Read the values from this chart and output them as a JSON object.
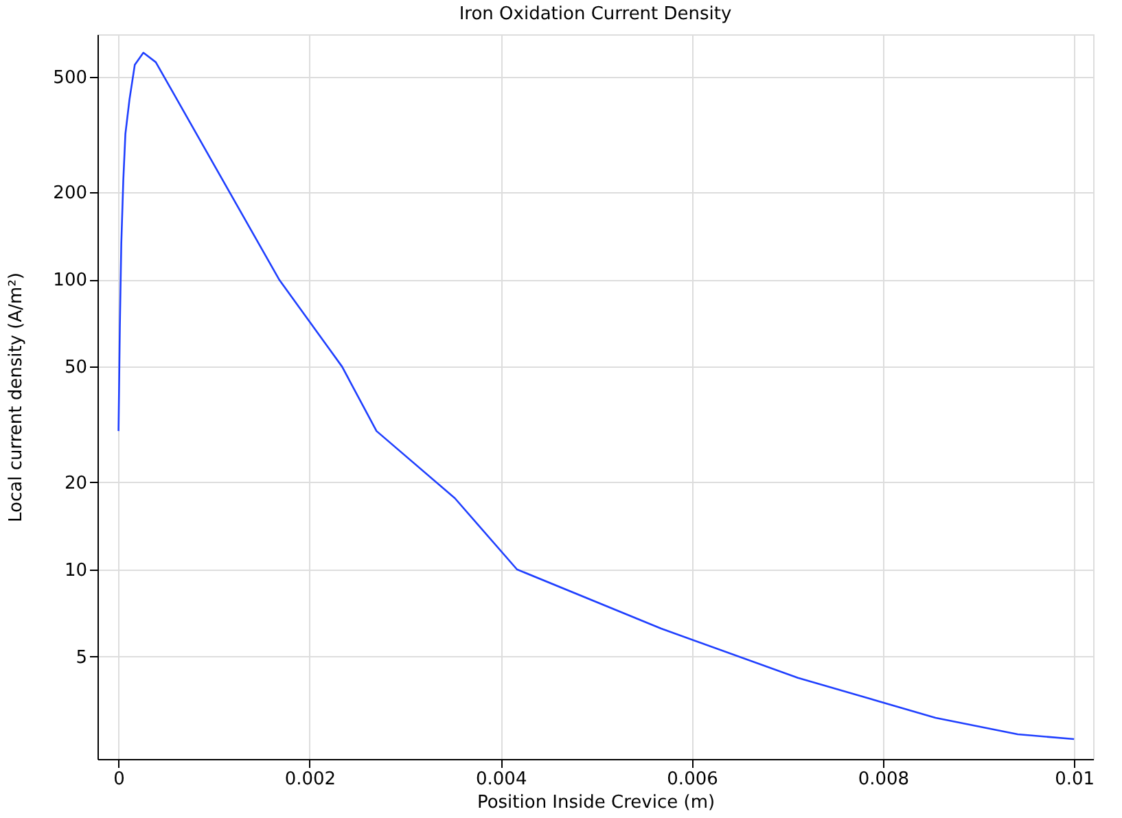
{
  "chart_data": {
    "type": "line",
    "title": "Iron Oxidation Current Density",
    "xlabel": "Position Inside Crevice (m)",
    "ylabel": "Local current density (A/m²)",
    "x": [
      0,
      1.4e-05,
      2.9e-05,
      5e-05,
      7.2e-05,
      0.000115,
      0.00017,
      0.00026,
      0.00039,
      0.00168,
      0.00234,
      0.0027,
      0.00352,
      0.00417,
      0.00568,
      0.00711,
      0.00855,
      0.00941,
      0.01
    ],
    "series": [
      {
        "color": "#1f3fff",
        "values": [
          30,
          69,
          133,
          220,
          318,
          418,
          549,
          605,
          561,
          100,
          50,
          30,
          17.6,
          10,
          6.25,
          4.23,
          3.08,
          2.7,
          2.6
        ]
      }
    ],
    "xlim": [
      -0.00022,
      0.0102
    ],
    "ylim": [
      2.22,
      700
    ],
    "xticks": [
      {
        "value": 0,
        "label": "0"
      },
      0.002,
      0.004,
      0.006,
      0.008,
      0.01
    ],
    "yticks": [
      5,
      10,
      20,
      50,
      100,
      200,
      500
    ],
    "log": "y",
    "grid": true,
    "legend": false,
    "marker": "none",
    "line_style": "solid"
  }
}
